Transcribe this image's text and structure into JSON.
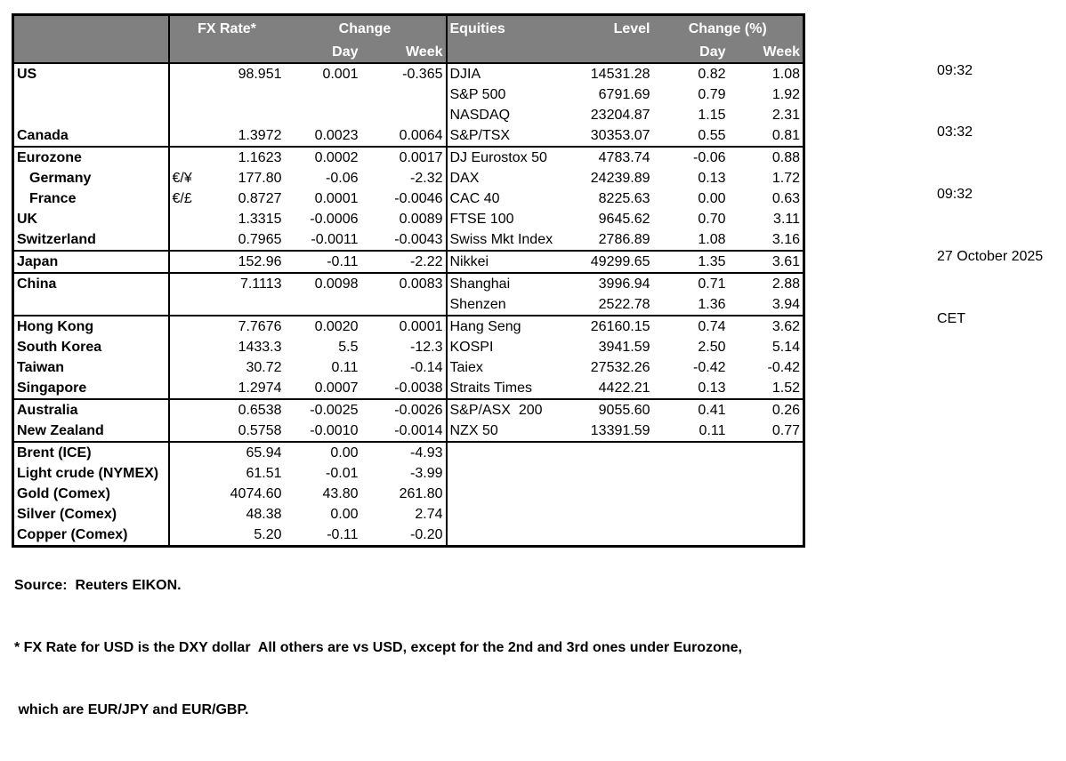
{
  "colors": {
    "header_bg": "#808080",
    "header_text": "#ffffff",
    "border": "#000000",
    "text": "#000000"
  },
  "table": {
    "header": {
      "fx_rate": "FX Rate*",
      "change": "Change",
      "day": "Day",
      "week": "Week",
      "equities": "Equities",
      "level": "Level",
      "change_pct": "Change (%)",
      "day2": "Day",
      "week2": "Week"
    },
    "rows": [
      {
        "fx_name": "US",
        "pair": "",
        "rate": "98.951",
        "day": "0.001",
        "week": "-0.365",
        "eq_name": "DJIA",
        "level": "14531.28",
        "eq_day": "0.82",
        "eq_week": "1.08",
        "indent": false,
        "group_start": false
      },
      {
        "fx_name": "",
        "pair": "",
        "rate": "",
        "day": "",
        "week": "",
        "eq_name": "S&P 500",
        "level": "6791.69",
        "eq_day": "0.79",
        "eq_week": "1.92",
        "indent": false,
        "group_start": false
      },
      {
        "fx_name": "",
        "pair": "",
        "rate": "",
        "day": "",
        "week": "",
        "eq_name": "NASDAQ",
        "level": "23204.87",
        "eq_day": "1.15",
        "eq_week": "2.31",
        "indent": false,
        "group_start": false
      },
      {
        "fx_name": "Canada",
        "pair": "",
        "rate": "1.3972",
        "day": "0.0023",
        "week": "0.0064",
        "eq_name": "S&P/TSX",
        "level": "30353.07",
        "eq_day": "0.55",
        "eq_week": "0.81",
        "indent": false,
        "group_start": false
      },
      {
        "fx_name": "Eurozone",
        "pair": "",
        "rate": "1.1623",
        "day": "0.0002",
        "week": "0.0017",
        "eq_name": "DJ Eurostox 50",
        "level": "4783.74",
        "eq_day": "-0.06",
        "eq_week": "0.88",
        "indent": false,
        "group_start": true
      },
      {
        "fx_name": "Germany",
        "pair": "€/¥",
        "rate": "177.80",
        "day": "-0.06",
        "week": "-2.32",
        "eq_name": "DAX",
        "level": "24239.89",
        "eq_day": "0.13",
        "eq_week": "1.72",
        "indent": true,
        "group_start": false
      },
      {
        "fx_name": "France",
        "pair": "€/£",
        "rate": "0.8727",
        "day": "0.0001",
        "week": "-0.0046",
        "eq_name": "CAC 40",
        "level": "8225.63",
        "eq_day": "0.00",
        "eq_week": "0.63",
        "indent": true,
        "group_start": false
      },
      {
        "fx_name": "UK",
        "pair": "",
        "rate": "1.3315",
        "day": "-0.0006",
        "week": "0.0089",
        "eq_name": "FTSE 100",
        "level": "9645.62",
        "eq_day": "0.70",
        "eq_week": "3.11",
        "indent": false,
        "group_start": false
      },
      {
        "fx_name": "Switzerland",
        "pair": "",
        "rate": "0.7965",
        "day": "-0.0011",
        "week": "-0.0043",
        "eq_name": "Swiss Mkt Index",
        "level": "2786.89",
        "eq_day": "1.08",
        "eq_week": "3.16",
        "indent": false,
        "group_start": false
      },
      {
        "fx_name": "Japan",
        "pair": "",
        "rate": "152.96",
        "day": "-0.11",
        "week": "-2.22",
        "eq_name": "Nikkei",
        "level": "49299.65",
        "eq_day": "1.35",
        "eq_week": "3.61",
        "indent": false,
        "group_start": true
      },
      {
        "fx_name": "China",
        "pair": "",
        "rate": "7.1113",
        "day": "0.0098",
        "week": "0.0083",
        "eq_name": "Shanghai",
        "level": "3996.94",
        "eq_day": "0.71",
        "eq_week": "2.88",
        "indent": false,
        "group_start": true
      },
      {
        "fx_name": "",
        "pair": "",
        "rate": "",
        "day": "",
        "week": "",
        "eq_name": "Shenzen",
        "level": "2522.78",
        "eq_day": "1.36",
        "eq_week": "3.94",
        "indent": false,
        "group_start": false
      },
      {
        "fx_name": "Hong Kong",
        "pair": "",
        "rate": "7.7676",
        "day": "0.0020",
        "week": "0.0001",
        "eq_name": "Hang Seng",
        "level": "26160.15",
        "eq_day": "0.74",
        "eq_week": "3.62",
        "indent": false,
        "group_start": true
      },
      {
        "fx_name": "South Korea",
        "pair": "",
        "rate": "1433.3",
        "day": "5.5",
        "week": "-12.3",
        "eq_name": "KOSPI",
        "level": "3941.59",
        "eq_day": "2.50",
        "eq_week": "5.14",
        "indent": false,
        "group_start": false
      },
      {
        "fx_name": "Taiwan",
        "pair": "",
        "rate": "30.72",
        "day": "0.11",
        "week": "-0.14",
        "eq_name": "Taiex",
        "level": "27532.26",
        "eq_day": "-0.42",
        "eq_week": "-0.42",
        "indent": false,
        "group_start": false
      },
      {
        "fx_name": "Singapore",
        "pair": "",
        "rate": "1.2974",
        "day": "0.0007",
        "week": "-0.0038",
        "eq_name": "Straits Times",
        "level": "4422.21",
        "eq_day": "0.13",
        "eq_week": "1.52",
        "indent": false,
        "group_start": false
      },
      {
        "fx_name": "Australia",
        "pair": "",
        "rate": "0.6538",
        "day": "-0.0025",
        "week": "-0.0026",
        "eq_name": "S&P/ASX  200",
        "level": "9055.60",
        "eq_day": "0.41",
        "eq_week": "0.26",
        "indent": false,
        "group_start": true
      },
      {
        "fx_name": "New Zealand",
        "pair": "",
        "rate": "0.5758",
        "day": "-0.0010",
        "week": "-0.0014",
        "eq_name": "NZX 50",
        "level": "13391.59",
        "eq_day": "0.11",
        "eq_week": "0.77",
        "indent": false,
        "group_start": false
      },
      {
        "fx_name": "Brent (ICE)",
        "pair": "",
        "rate": "65.94",
        "day": "0.00",
        "week": "-4.93",
        "eq_name": "",
        "level": "",
        "eq_day": "",
        "eq_week": "",
        "indent": false,
        "group_start": true
      },
      {
        "fx_name": "Light crude (NYMEX)",
        "pair": "",
        "rate": "61.51",
        "day": "-0.01",
        "week": "-3.99",
        "eq_name": "",
        "level": "",
        "eq_day": "",
        "eq_week": "",
        "indent": false,
        "group_start": false
      },
      {
        "fx_name": "Gold (Comex)",
        "pair": "",
        "rate": "4074.60",
        "day": "43.80",
        "week": "261.80",
        "eq_name": "",
        "level": "",
        "eq_day": "",
        "eq_week": "",
        "indent": false,
        "group_start": false
      },
      {
        "fx_name": "Silver (Comex)",
        "pair": "",
        "rate": "48.38",
        "day": "0.00",
        "week": "2.74",
        "eq_name": "",
        "level": "",
        "eq_day": "",
        "eq_week": "",
        "indent": false,
        "group_start": false
      },
      {
        "fx_name": "Copper (Comex)",
        "pair": "",
        "rate": "5.20",
        "day": "-0.11",
        "week": "-0.20",
        "eq_name": "",
        "level": "",
        "eq_day": "",
        "eq_week": "",
        "indent": false,
        "group_start": false
      }
    ]
  },
  "side_panel": {
    "times": [
      "09:32",
      "03:32",
      "09:32",
      "27 October 2025",
      "CET"
    ]
  },
  "footer": {
    "source": "Source:  Reuters EIKON.",
    "note_line1": "* FX Rate for USD is the DXY dollar  All others are vs USD, except for the 2nd and 3rd ones under Eurozone,",
    "note_line2": " which are EUR/JPY and EUR/GBP."
  }
}
